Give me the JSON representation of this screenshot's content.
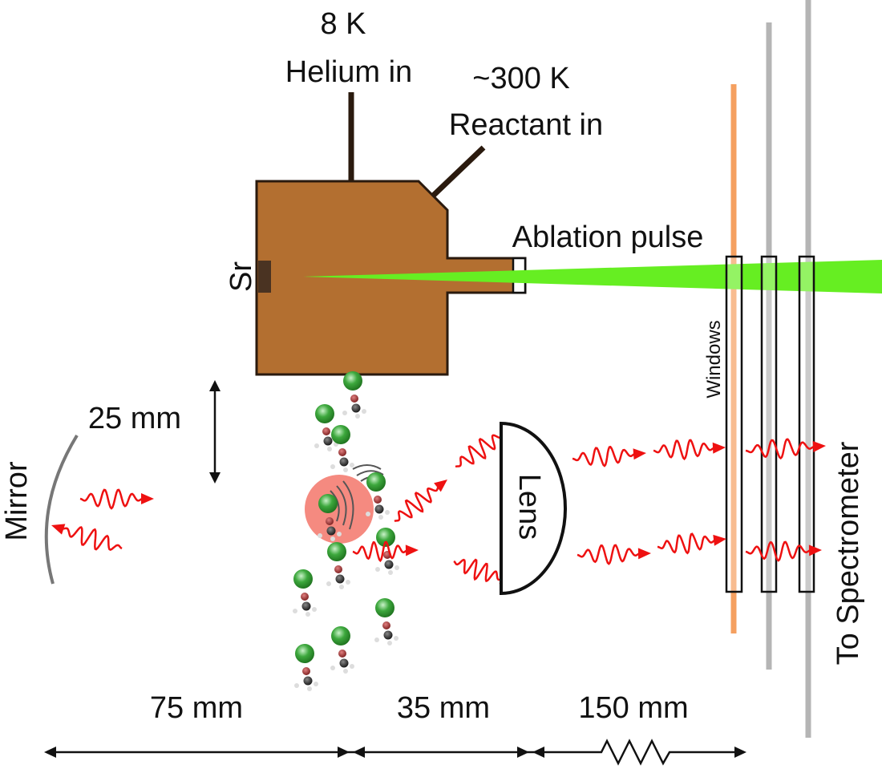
{
  "labels": {
    "helium_temp": "8 K",
    "helium_in": "Helium in",
    "reactant_temp": "~300 K",
    "reactant_in": "Reactant in",
    "ablation_pulse": "Ablation pulse",
    "target": "Sr",
    "windows": "Windows",
    "distance_vertical": "25 mm",
    "mirror": "Mirror",
    "lens": "Lens",
    "to_spectrometer": "To Spectrometer",
    "distance_1": "75 mm",
    "distance_2": "35 mm",
    "distance_3": "150 mm"
  },
  "colors": {
    "cell": "#b36f30",
    "cell_stroke": "#2a1a0e",
    "target": "#4a3322",
    "laser": "#66ee22",
    "photon": "#ee1111",
    "fluorescence_glow": "#f58a80",
    "molecule_metal": "#2f9a2f",
    "molecule_oxygen": "#9a2a2a",
    "molecule_carbon": "#222222",
    "orange_filter": "#f5a060",
    "grey_filter": "#b5b5b5",
    "mirror": "#777777"
  }
}
